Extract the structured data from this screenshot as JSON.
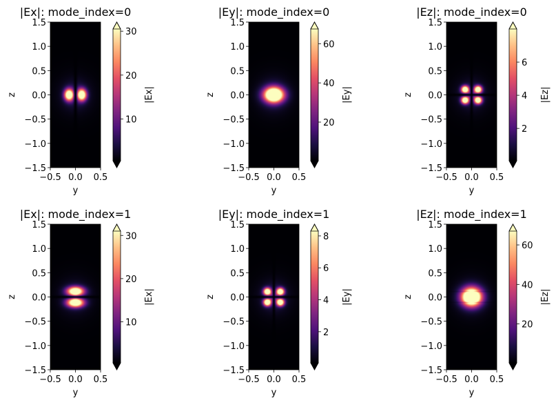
{
  "chart_data": [
    {
      "type": "heatmap",
      "title": "|Ex|: mode_index=0",
      "field": "Ex",
      "mode_index": 0,
      "xlabel": "y",
      "ylabel": "z",
      "xlim": [
        -0.5,
        0.5
      ],
      "ylim": [
        -1.5,
        1.5
      ],
      "xticks": [
        "−0.5",
        "0.0",
        "0.5"
      ],
      "yticks": [
        "−1.5",
        "−1.0",
        "−0.5",
        "0.0",
        "0.5",
        "1.0",
        "1.5"
      ],
      "colorbar": {
        "label": "|Ex|",
        "range": [
          0.5,
          30.5
        ],
        "ticks": [
          10,
          20,
          30
        ],
        "colormap": "magma",
        "extend": "both"
      }
    },
    {
      "type": "heatmap",
      "title": "|Ey|: mode_index=0",
      "field": "Ey",
      "mode_index": 0,
      "xlabel": "y",
      "ylabel": "z",
      "xlim": [
        -0.5,
        0.5
      ],
      "ylim": [
        -1.5,
        1.5
      ],
      "xticks": [
        "−0.5",
        "0.0",
        "0.5"
      ],
      "yticks": [
        "−1.5",
        "−1.0",
        "−0.5",
        "0.0",
        "0.5",
        "1.0",
        "1.5"
      ],
      "colorbar": {
        "label": "|Ey|",
        "range": [
          0.3,
          67.5
        ],
        "ticks": [
          20,
          40,
          60
        ],
        "colormap": "magma",
        "extend": "both"
      }
    },
    {
      "type": "heatmap",
      "title": "|Ez|: mode_index=0",
      "field": "Ez",
      "mode_index": 0,
      "xlabel": "y",
      "ylabel": "z",
      "xlim": [
        -0.5,
        0.5
      ],
      "ylim": [
        -1.5,
        1.5
      ],
      "xticks": [
        "−0.5",
        "0.0",
        "0.5"
      ],
      "yticks": [
        "−1.5",
        "−1.0",
        "−0.5",
        "0.0",
        "0.5",
        "1.0",
        "1.5"
      ],
      "colorbar": {
        "label": "|Ez|",
        "range": [
          0.05,
          8.0
        ],
        "ticks": [
          2,
          4,
          6
        ],
        "colormap": "magma",
        "extend": "both"
      }
    },
    {
      "type": "heatmap",
      "title": "|Ex|: mode_index=1",
      "field": "Ex",
      "mode_index": 1,
      "xlabel": "y",
      "ylabel": "z",
      "xlim": [
        -0.5,
        0.5
      ],
      "ylim": [
        -1.5,
        1.5
      ],
      "xticks": [
        "−0.5",
        "0.0",
        "0.5"
      ],
      "yticks": [
        "−1.5",
        "−1.0",
        "−0.5",
        "0.0",
        "0.5",
        "1.0",
        "1.5"
      ],
      "colorbar": {
        "label": "|Ex|",
        "range": [
          0.5,
          31
        ],
        "ticks": [
          10,
          20,
          30
        ],
        "colormap": "magma",
        "extend": "both"
      }
    },
    {
      "type": "heatmap",
      "title": "|Ey|: mode_index=1",
      "field": "Ey",
      "mode_index": 1,
      "xlabel": "y",
      "ylabel": "z",
      "xlim": [
        -0.5,
        0.5
      ],
      "ylim": [
        -1.5,
        1.5
      ],
      "xticks": [
        "−0.5",
        "0.0",
        "0.5"
      ],
      "yticks": [
        "−1.5",
        "−1.0",
        "−0.5",
        "0.0",
        "0.5",
        "1.0",
        "1.5"
      ],
      "colorbar": {
        "label": "|Ey|",
        "range": [
          0.05,
          8.3
        ],
        "ticks": [
          2,
          4,
          6,
          8
        ],
        "colormap": "magma",
        "extend": "both"
      }
    },
    {
      "type": "heatmap",
      "title": "|Ez|: mode_index=1",
      "field": "Ez",
      "mode_index": 1,
      "xlabel": "y",
      "ylabel": "z",
      "xlim": [
        -0.5,
        0.5
      ],
      "ylim": [
        -1.5,
        1.5
      ],
      "xticks": [
        "−0.5",
        "0.0",
        "0.5"
      ],
      "yticks": [
        "−1.5",
        "−1.0",
        "−0.5",
        "0.0",
        "0.5",
        "1.0",
        "1.5"
      ],
      "colorbar": {
        "label": "|Ez|",
        "range": [
          0.3,
          67
        ],
        "ticks": [
          20,
          40,
          60
        ],
        "colormap": "magma",
        "extend": "both"
      }
    }
  ]
}
